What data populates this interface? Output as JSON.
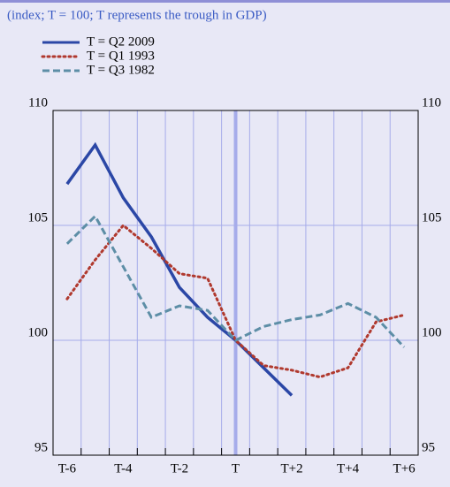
{
  "chart_data": {
    "type": "line",
    "subtitle": "(index; T = 100; T represents the trough in GDP)",
    "categories": [
      "T-6",
      null,
      "T-4",
      null,
      "T-2",
      null,
      "T",
      null,
      "T+2",
      null,
      "T+4",
      null,
      "T+6"
    ],
    "series": [
      {
        "name": "T = Q2 2009",
        "color": "#2b47a6",
        "style": "solid",
        "values": [
          106.8,
          108.5,
          106.2,
          104.5,
          102.3,
          101.0,
          100.0,
          98.8,
          97.6,
          null,
          null,
          null,
          null
        ]
      },
      {
        "name": "T = Q1 1993",
        "color": "#b0392e",
        "style": "dotted",
        "values": [
          101.8,
          103.5,
          105.0,
          104.0,
          102.9,
          102.7,
          100.0,
          98.9,
          98.7,
          98.4,
          98.8,
          100.8,
          101.1
        ]
      },
      {
        "name": "T = Q3 1982",
        "color": "#5d8ea6",
        "style": "dashed",
        "values": [
          104.2,
          105.4,
          103.2,
          101.0,
          101.5,
          101.3,
          100.0,
          100.6,
          100.9,
          101.1,
          101.6,
          101.0,
          99.7
        ]
      }
    ],
    "ylim": [
      95,
      110
    ],
    "yticks": [
      95,
      100,
      105,
      110
    ],
    "grid": true
  }
}
